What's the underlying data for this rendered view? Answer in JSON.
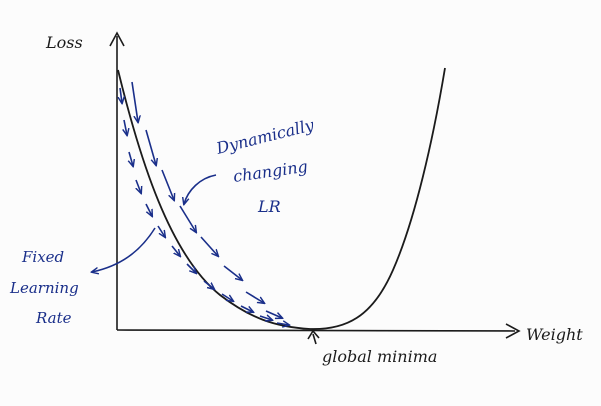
{
  "axes": {
    "y_label": "Loss",
    "x_label": "Weight"
  },
  "annotations": {
    "fixed_lr": [
      "Fixed",
      "Learning",
      "Rate"
    ],
    "dynamic_lr": [
      "Dynamically",
      "changing",
      "LR"
    ],
    "minimum": "global minima"
  },
  "colors": {
    "pencil": "#1b1b1b",
    "ink": "#1a2f8a"
  }
}
